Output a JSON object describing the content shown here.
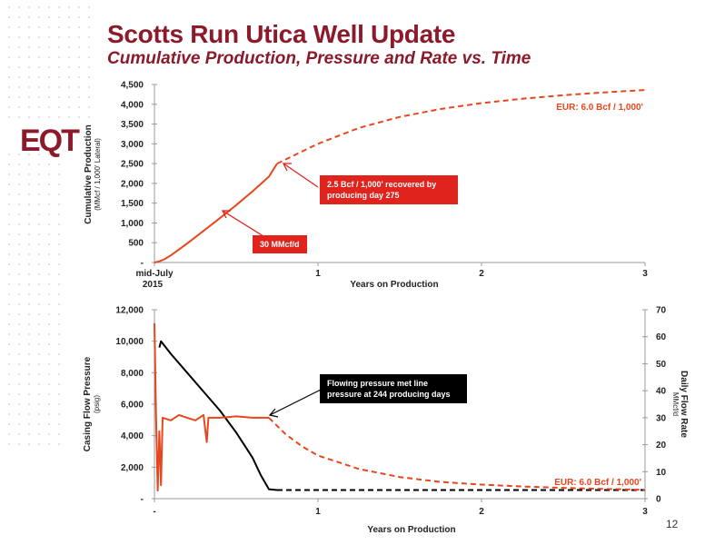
{
  "header": {
    "title": "Scotts Run Utica Well Update",
    "subtitle": "Cumulative Production, Pressure and Rate vs. Time",
    "logo": "EQT",
    "page_number": "12"
  },
  "colors": {
    "brand": "#8b1a2b",
    "accent_orange": "#e8461c",
    "annotation_red": "#e0231c",
    "black": "#000000"
  },
  "chart_data": [
    {
      "type": "line",
      "title": "",
      "xlabel": "Years on Production",
      "ylabel": "Cumulative Production",
      "ylabel_sub": "(MMcf / 1,000' Lateral)",
      "xlim": [
        0,
        3
      ],
      "ylim": [
        0,
        4500
      ],
      "x_ticks": [
        {
          "value": 0,
          "label": "mid-July"
        },
        {
          "value": 1,
          "label": "1"
        },
        {
          "value": 2,
          "label": "2"
        },
        {
          "value": 3,
          "label": "3"
        }
      ],
      "x_tick0_sublabel": "2015",
      "y_ticks": [
        {
          "value": 0,
          "label": "-"
        },
        {
          "value": 500,
          "label": "500"
        },
        {
          "value": 1000,
          "label": "1,000"
        },
        {
          "value": 1500,
          "label": "1,500"
        },
        {
          "value": 2000,
          "label": "2,000"
        },
        {
          "value": 2500,
          "label": "2,500"
        },
        {
          "value": 3000,
          "label": "3,000"
        },
        {
          "value": 3500,
          "label": "3,500"
        },
        {
          "value": 4000,
          "label": "4,000"
        },
        {
          "value": 4500,
          "label": "4,500"
        }
      ],
      "grid": false,
      "series": [
        {
          "style": "solid",
          "color": "#e8461c",
          "points": [
            [
              0,
              0
            ],
            [
              0.03,
              30
            ],
            [
              0.06,
              80
            ],
            [
              0.1,
              180
            ],
            [
              0.2,
              480
            ],
            [
              0.3,
              800
            ],
            [
              0.4,
              1120
            ],
            [
              0.5,
              1450
            ],
            [
              0.6,
              1800
            ],
            [
              0.7,
              2170
            ],
            [
              0.75,
              2500
            ]
          ]
        },
        {
          "style": "dashed",
          "color": "#e8461c",
          "points": [
            [
              0.75,
              2500
            ],
            [
              1,
              3000
            ],
            [
              1.25,
              3400
            ],
            [
              1.5,
              3680
            ],
            [
              1.75,
              3880
            ],
            [
              2,
              4030
            ],
            [
              2.25,
              4140
            ],
            [
              2.5,
              4230
            ],
            [
              2.75,
              4300
            ],
            [
              3,
              4360
            ]
          ]
        }
      ],
      "annotations": [
        {
          "text": "EUR: 6.0 Bcf / 1,000'",
          "style": "text"
        },
        {
          "text": "2.5 Bcf / 1,000' recovered by producing day 275",
          "style": "box"
        },
        {
          "text": "30 MMcf/d",
          "style": "box"
        }
      ]
    },
    {
      "type": "line",
      "title": "",
      "xlabel": "Years on Production",
      "ylabel": "Casing Flow Pressure",
      "ylabel_sub": "(psig)",
      "y2label": "Daily Flow Rate",
      "y2label_sub": "MMcf/d",
      "xlim": [
        0,
        3
      ],
      "ylim": [
        0,
        12000
      ],
      "y2lim": [
        0,
        70
      ],
      "x_ticks": [
        {
          "value": 0,
          "label": "-"
        },
        {
          "value": 1,
          "label": "1"
        },
        {
          "value": 2,
          "label": "2"
        },
        {
          "value": 3,
          "label": "3"
        }
      ],
      "y_ticks": [
        {
          "value": 0,
          "label": "-"
        },
        {
          "value": 2000,
          "label": "2,000"
        },
        {
          "value": 4000,
          "label": "4,000"
        },
        {
          "value": 6000,
          "label": "6,000"
        },
        {
          "value": 8000,
          "label": "8,000"
        },
        {
          "value": 10000,
          "label": "10,000"
        },
        {
          "value": 12000,
          "label": "12,000"
        }
      ],
      "y2_ticks": [
        {
          "value": 0,
          "label": "0"
        },
        {
          "value": 10,
          "label": "10"
        },
        {
          "value": 20,
          "label": "20"
        },
        {
          "value": 30,
          "label": "30"
        },
        {
          "value": 40,
          "label": "40"
        },
        {
          "value": 50,
          "label": "50"
        },
        {
          "value": 60,
          "label": "60"
        },
        {
          "value": 70,
          "label": "70"
        }
      ],
      "grid": false,
      "series": [
        {
          "axis": "y",
          "style": "solid",
          "color": "#000000",
          "points": [
            [
              0.03,
              9600
            ],
            [
              0.04,
              10000
            ],
            [
              0.1,
              9200
            ],
            [
              0.2,
              8000
            ],
            [
              0.3,
              6800
            ],
            [
              0.4,
              5600
            ],
            [
              0.5,
              4200
            ],
            [
              0.6,
              2600
            ],
            [
              0.65,
              1500
            ],
            [
              0.7,
              600
            ],
            [
              0.75,
              550
            ]
          ]
        },
        {
          "axis": "y",
          "style": "dashed",
          "color": "#000000",
          "points": [
            [
              0.75,
              550
            ],
            [
              3,
              550
            ]
          ]
        },
        {
          "axis": "y2",
          "style": "solid",
          "color": "#e8461c",
          "points": [
            [
              0,
              65
            ],
            [
              0.01,
              30
            ],
            [
              0.02,
              3
            ],
            [
              0.03,
              25
            ],
            [
              0.04,
              5
            ],
            [
              0.05,
              30
            ],
            [
              0.1,
              29
            ],
            [
              0.15,
              31
            ],
            [
              0.2,
              30
            ],
            [
              0.25,
              29
            ],
            [
              0.3,
              31
            ],
            [
              0.32,
              21
            ],
            [
              0.33,
              30
            ],
            [
              0.4,
              30
            ],
            [
              0.5,
              30.5
            ],
            [
              0.6,
              30
            ],
            [
              0.7,
              30
            ]
          ]
        },
        {
          "axis": "y2",
          "style": "dashed",
          "color": "#e8461c",
          "points": [
            [
              0.7,
              30
            ],
            [
              0.8,
              24
            ],
            [
              0.9,
              19.5
            ],
            [
              1,
              16
            ],
            [
              1.25,
              11
            ],
            [
              1.5,
              8
            ],
            [
              1.75,
              6.2
            ],
            [
              2,
              5.2
            ],
            [
              2.25,
              4.5
            ],
            [
              2.5,
              4
            ],
            [
              2.75,
              3.6
            ],
            [
              3,
              3.3
            ]
          ]
        }
      ],
      "annotations": [
        {
          "text": "EUR: 6.0 Bcf / 1,000'",
          "style": "text"
        },
        {
          "text": "Flowing pressure met line pressure at 244  producing days",
          "style": "box"
        }
      ]
    }
  ]
}
